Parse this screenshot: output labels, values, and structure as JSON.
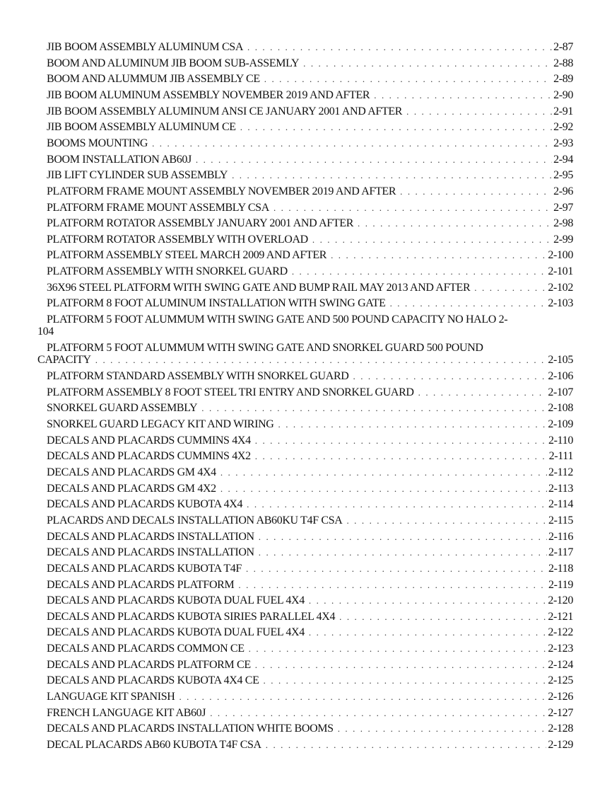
{
  "toc": {
    "entries": [
      {
        "title": "JIB BOOM ASSEMBLY ALUMINUM CSA",
        "page": "2-87"
      },
      {
        "title": "BOOM  AND ALUMINUM JIB BOOM SUB-ASSEMLY",
        "page": "2-88"
      },
      {
        "title": "BOOM  AND ALUMMUM  JIB ASSEMBLY CE",
        "page": "2-89"
      },
      {
        "title": "JIB BOOM ALUMINUM ASSEMBLY NOVEMBER 2019 AND AFTER",
        "page": "2-90"
      },
      {
        "title": "JIB BOOM ASSEMBLY ALUMINUM  ANSI CE JANUARY  2001 AND AFTER",
        "page": "2-91"
      },
      {
        "title": "JIB BOOM ASSEMBLY ALUMINUM CE",
        "page": "2-92"
      },
      {
        "title": "BOOMS MOUNTING",
        "page": "2-93"
      },
      {
        "title": "BOOM INSTALLATION AB60J",
        "page": "2-94"
      },
      {
        "title": "JIB LIFT CYLINDER SUB ASSEMBLY",
        "page": "2-95"
      },
      {
        "title": "PLATFORM FRAME MOUNT ASSEMBLY NOVEMBER 2019 AND AFTER",
        "page": "2-96"
      },
      {
        "title": "PLATFORM FRAME MOUNT ASSEMBLY CSA",
        "page": "2-97"
      },
      {
        "title": "PLATFORM ROTATOR ASSEMBLY JANUARY 2001 AND AFTER",
        "page": "2-98"
      },
      {
        "title": "PLATFORM ROTATOR ASSEMBLY WITH OVERLOAD",
        "page": "2-99"
      },
      {
        "title": "PLATFORM ASSEMBLY STEEL MARCH 2009 AND AFTER",
        "page": "2-100"
      },
      {
        "title": "PLATFORM  ASSEMBLY  WITH SNORKEL GUARD",
        "page": "2-101"
      },
      {
        "title": "36X96 STEEL PLATFORM  WITH SWING GATE AND BUMP RAIL   MAY 2013 AND AFTER",
        "page": "2-102"
      },
      {
        "title": "PLATFORM  8 FOOT ALUMINUM  INSTALLATION  WITH SWING GATE",
        "page": "2-103"
      },
      {
        "title": "PLATFORM 5 FOOT ALUMMUM WITH SWING GATE AND 500 POUND CAPACITY NO HALO 2-",
        "page": "",
        "continuation": "104"
      },
      {
        "title": "PLATFORM 5 FOOT ALUMMUM WITH SWING GATE AND SNORKEL GUARD 500 POUND",
        "page": "2-105",
        "continuation": "CAPACITY"
      },
      {
        "title": "PLATFORM  STANDARD ASSEMBLY WITH SNORKEL GUARD",
        "page": "2-106"
      },
      {
        "title": "PLATFORM ASSEMBLY 8 FOOT STEEL TRI ENTRY AND SNORKEL GUARD",
        "page": "2-107"
      },
      {
        "title": "SNORKEL GUARD ASSEMBLY",
        "page": "2-108"
      },
      {
        "title": "SNORKEL GUARD LEGACY KIT AND WIRING",
        "page": "2-109"
      },
      {
        "title": "DECALS AND  PLACARDS CUMMINS 4X4",
        "page": "2-110"
      },
      {
        "title": "DECALS AND  PLACARDS CUMMINS 4X2",
        "page": "2-111"
      },
      {
        "title": "DECALS AND PLACARDS GM 4X4",
        "page": "2-112"
      },
      {
        "title": "DECALS AND PLACARDS  GM 4X2",
        "page": "2-113"
      },
      {
        "title": "DECALS AND PLACARDS KUBOTA 4X4",
        "page": "2-114"
      },
      {
        "title": "PLACARDS AND DECALS INSTALLATION AB60KU T4F CSA",
        "page": "2-115"
      },
      {
        "title": "DECALS AND PLACARDS INSTALLATION",
        "page": "2-116"
      },
      {
        "title": "DECALS AND PLACARDS INSTALLATION",
        "page": "2-117"
      },
      {
        "title": "DECALS AND PLACARDS KUBOTA T4F",
        "page": "2-118"
      },
      {
        "title": "DECALS AND PLACARDS  PLATFORM",
        "page": "2-119"
      },
      {
        "title": "DECALS AND PLACARDS KUBOTA DUAL FUEL 4X4",
        "page": "2-120"
      },
      {
        "title": "DECALS AND PLACARDS KUBOTA SIRIES PARALLEL 4X4",
        "page": "2-121"
      },
      {
        "title": "DECALS AND PLACARDS KUBOTA DUAL FUEL 4X4",
        "page": "2-122"
      },
      {
        "title": "DECALS AND PLACARDS COMMON CE",
        "page": "2-123"
      },
      {
        "title": "DECALS AND PLACARDS PLATFORM CE",
        "page": "2-124"
      },
      {
        "title": "DECALS AND PLACARDS KUBOTA 4X4 CE",
        "page": "2-125"
      },
      {
        "title": "LANGUAGE KIT SPANISH",
        "page": "2-126"
      },
      {
        "title": "FRENCH LANGUAGE KIT AB60J",
        "page": "2-127"
      },
      {
        "title": "DECALS AND PLACARDS INSTALLATION WHITE BOOMS",
        "page": "2-128"
      },
      {
        "title": "DECAL PLACARDS AB60 KUBOTA T4F CSA",
        "page": "2-129"
      }
    ]
  }
}
